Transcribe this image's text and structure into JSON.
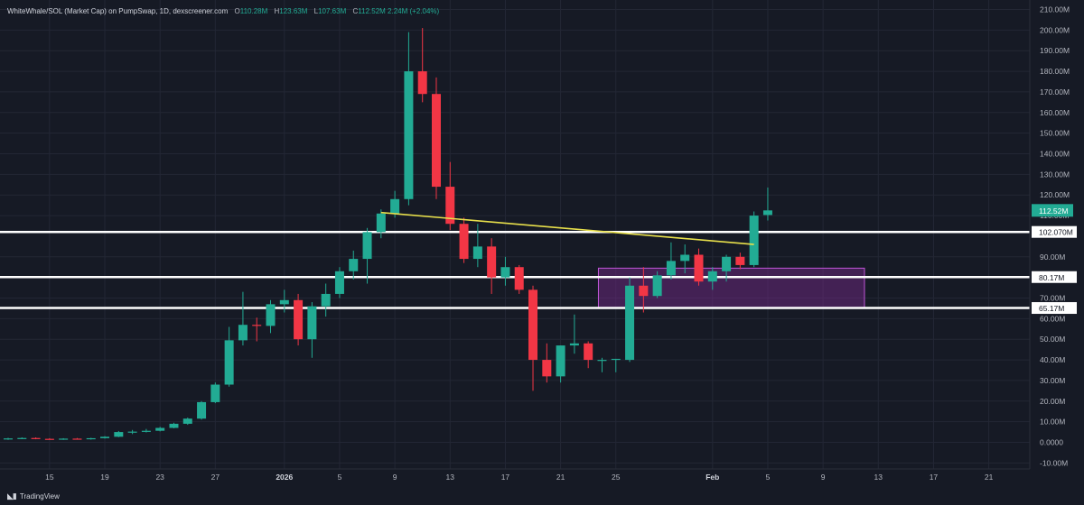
{
  "legend": {
    "symbol": "WhiteWhale/SOL (Market Cap) on PumpSwap, 1D, dexscreener.com",
    "o_label": "O",
    "o_value": "110.28M",
    "h_label": "H",
    "h_value": "123.63M",
    "l_label": "L",
    "l_value": "107.63M",
    "c_label": "C",
    "c_value": "112.52M",
    "change": "2.24M (+2.04%)"
  },
  "footer": {
    "brand": "TradingView",
    "logo_icon": "tradingview-logo-icon"
  },
  "colors": {
    "background": "#161a25",
    "grid": "#232735",
    "up": "#22ab94",
    "down": "#f23645",
    "level_line": "#ffffff",
    "trendline": "#e8e04b",
    "zone_fill": "#7b2a8f",
    "zone_stroke": "#c055d8"
  },
  "chart_data": {
    "type": "candlestick",
    "title": "",
    "y_unit": "M",
    "ylim": [
      -10,
      210
    ],
    "y_ticks": [
      {
        "value": 210,
        "label": "210.00M"
      },
      {
        "value": 200,
        "label": "200.00M"
      },
      {
        "value": 190,
        "label": "190.00M"
      },
      {
        "value": 180,
        "label": "180.00M"
      },
      {
        "value": 170,
        "label": "170.00M"
      },
      {
        "value": 160,
        "label": "160.00M"
      },
      {
        "value": 150,
        "label": "150.00M"
      },
      {
        "value": 140,
        "label": "140.00M"
      },
      {
        "value": 130,
        "label": "130.00M"
      },
      {
        "value": 120,
        "label": "120.00M"
      },
      {
        "value": 110,
        "label": "110.00M"
      },
      {
        "value": 90,
        "label": "90.00M"
      },
      {
        "value": 70,
        "label": "70.00M"
      },
      {
        "value": 60,
        "label": "60.00M"
      },
      {
        "value": 50,
        "label": "50.00M"
      },
      {
        "value": 40,
        "label": "40.00M"
      },
      {
        "value": 30,
        "label": "30.00M"
      },
      {
        "value": 20,
        "label": "20.00M"
      },
      {
        "value": 10,
        "label": "10.00M"
      },
      {
        "value": 0,
        "label": "0.0000"
      },
      {
        "value": -10,
        "label": "-10.00M"
      }
    ],
    "x_ticks": [
      {
        "label": "15",
        "date": "2025-12-15"
      },
      {
        "label": "19",
        "date": "2025-12-19"
      },
      {
        "label": "23",
        "date": "2025-12-23"
      },
      {
        "label": "27",
        "date": "2025-12-27"
      },
      {
        "label": "2026",
        "date": "2026-01-01",
        "bold": true
      },
      {
        "label": "5",
        "date": "2026-01-05"
      },
      {
        "label": "9",
        "date": "2026-01-09"
      },
      {
        "label": "13",
        "date": "2026-01-13"
      },
      {
        "label": "17",
        "date": "2026-01-17"
      },
      {
        "label": "21",
        "date": "2026-01-21"
      },
      {
        "label": "25",
        "date": "2026-01-25"
      },
      {
        "label": "Feb",
        "date": "2026-02-01",
        "bold": true
      },
      {
        "label": "5",
        "date": "2026-02-05"
      },
      {
        "label": "9",
        "date": "2026-02-09"
      },
      {
        "label": "13",
        "date": "2026-02-13"
      },
      {
        "label": "17",
        "date": "2026-02-17"
      },
      {
        "label": "21",
        "date": "2026-02-21"
      }
    ],
    "candles": [
      {
        "date": "2025-12-12",
        "o": 1.6,
        "h": 2.2,
        "l": 1.2,
        "c": 1.9
      },
      {
        "date": "2025-12-13",
        "o": 1.9,
        "h": 2.4,
        "l": 1.6,
        "c": 2.1
      },
      {
        "date": "2025-12-14",
        "o": 2.1,
        "h": 2.4,
        "l": 1.5,
        "c": 1.7
      },
      {
        "date": "2025-12-15",
        "o": 1.7,
        "h": 2.0,
        "l": 1.3,
        "c": 1.5
      },
      {
        "date": "2025-12-16",
        "o": 1.5,
        "h": 2.0,
        "l": 1.2,
        "c": 1.8
      },
      {
        "date": "2025-12-17",
        "o": 1.8,
        "h": 2.1,
        "l": 1.3,
        "c": 1.5
      },
      {
        "date": "2025-12-18",
        "o": 1.5,
        "h": 2.2,
        "l": 1.3,
        "c": 2.0
      },
      {
        "date": "2025-12-19",
        "o": 2.0,
        "h": 3.0,
        "l": 1.8,
        "c": 2.7
      },
      {
        "date": "2025-12-20",
        "o": 2.7,
        "h": 5.5,
        "l": 2.5,
        "c": 5.0
      },
      {
        "date": "2025-12-21",
        "o": 5.0,
        "h": 6.0,
        "l": 4.0,
        "c": 5.2
      },
      {
        "date": "2025-12-22",
        "o": 5.2,
        "h": 6.5,
        "l": 4.8,
        "c": 5.6
      },
      {
        "date": "2025-12-23",
        "o": 5.6,
        "h": 7.5,
        "l": 5.3,
        "c": 7.0
      },
      {
        "date": "2025-12-24",
        "o": 7.0,
        "h": 9.5,
        "l": 6.8,
        "c": 9.0
      },
      {
        "date": "2025-12-25",
        "o": 9.0,
        "h": 12.0,
        "l": 8.5,
        "c": 11.5
      },
      {
        "date": "2025-12-26",
        "o": 11.5,
        "h": 20.0,
        "l": 11.0,
        "c": 19.5
      },
      {
        "date": "2025-12-27",
        "o": 19.5,
        "h": 29.0,
        "l": 19.0,
        "c": 28.0
      },
      {
        "date": "2025-12-28",
        "o": 28.0,
        "h": 56.0,
        "l": 27.0,
        "c": 49.5
      },
      {
        "date": "2025-12-29",
        "o": 49.5,
        "h": 73.0,
        "l": 47.0,
        "c": 57.0
      },
      {
        "date": "2025-12-30",
        "o": 57.0,
        "h": 60.5,
        "l": 49.0,
        "c": 56.5
      },
      {
        "date": "2025-12-31",
        "o": 56.5,
        "h": 69.0,
        "l": 53.0,
        "c": 67.0
      },
      {
        "date": "2026-01-01",
        "o": 67.0,
        "h": 74.0,
        "l": 63.0,
        "c": 69.0
      },
      {
        "date": "2026-01-02",
        "o": 69.0,
        "h": 72.0,
        "l": 47.0,
        "c": 50.0
      },
      {
        "date": "2026-01-03",
        "o": 50.0,
        "h": 68.0,
        "l": 41.0,
        "c": 66.0
      },
      {
        "date": "2026-01-04",
        "o": 66.0,
        "h": 77.0,
        "l": 61.0,
        "c": 72.0
      },
      {
        "date": "2026-01-05",
        "o": 72.0,
        "h": 85.0,
        "l": 70.0,
        "c": 83.0
      },
      {
        "date": "2026-01-06",
        "o": 83.0,
        "h": 93.0,
        "l": 79.0,
        "c": 89.0
      },
      {
        "date": "2026-01-07",
        "o": 89.0,
        "h": 104.0,
        "l": 77.0,
        "c": 102.0
      },
      {
        "date": "2026-01-08",
        "o": 102.0,
        "h": 113.0,
        "l": 99.0,
        "c": 111.0
      },
      {
        "date": "2026-01-09",
        "o": 111.0,
        "h": 122.0,
        "l": 109.0,
        "c": 118.0
      },
      {
        "date": "2026-01-10",
        "o": 118.0,
        "h": 199.0,
        "l": 115.0,
        "c": 180.0
      },
      {
        "date": "2026-01-11",
        "o": 180.0,
        "h": 201.0,
        "l": 165.0,
        "c": 169.0
      },
      {
        "date": "2026-01-12",
        "o": 169.0,
        "h": 177.0,
        "l": 118.0,
        "c": 124.0
      },
      {
        "date": "2026-01-13",
        "o": 124.0,
        "h": 136.0,
        "l": 103.0,
        "c": 106.0
      },
      {
        "date": "2026-01-14",
        "o": 106.0,
        "h": 109.0,
        "l": 87.0,
        "c": 89.0
      },
      {
        "date": "2026-01-15",
        "o": 89.0,
        "h": 106.0,
        "l": 85.0,
        "c": 95.0
      },
      {
        "date": "2026-01-16",
        "o": 95.0,
        "h": 99.0,
        "l": 72.0,
        "c": 80.0
      },
      {
        "date": "2026-01-17",
        "o": 80.0,
        "h": 90.0,
        "l": 76.0,
        "c": 85.0
      },
      {
        "date": "2026-01-18",
        "o": 85.0,
        "h": 86.0,
        "l": 72.0,
        "c": 74.0
      },
      {
        "date": "2026-01-19",
        "o": 74.0,
        "h": 76.0,
        "l": 25.0,
        "c": 40.0
      },
      {
        "date": "2026-01-20",
        "o": 40.0,
        "h": 48.0,
        "l": 29.0,
        "c": 32.0
      },
      {
        "date": "2026-01-21",
        "o": 32.0,
        "h": 47.0,
        "l": 29.0,
        "c": 47.0
      },
      {
        "date": "2026-01-22",
        "o": 47.0,
        "h": 62.0,
        "l": 43.0,
        "c": 48.0
      },
      {
        "date": "2026-01-23",
        "o": 48.0,
        "h": 49.0,
        "l": 36.0,
        "c": 40.0
      },
      {
        "date": "2026-01-24",
        "o": 40.0,
        "h": 41.0,
        "l": 34.0,
        "c": 40.0
      },
      {
        "date": "2026-01-25",
        "o": 40.0,
        "h": 40.5,
        "l": 34.0,
        "c": 40.5
      },
      {
        "date": "2026-01-26",
        "o": 40.0,
        "h": 80.0,
        "l": 39.0,
        "c": 76.0
      },
      {
        "date": "2026-01-27",
        "o": 76.0,
        "h": 85.0,
        "l": 63.0,
        "c": 71.0
      },
      {
        "date": "2026-01-28",
        "o": 71.0,
        "h": 83.0,
        "l": 70.0,
        "c": 81.0
      },
      {
        "date": "2026-01-29",
        "o": 81.0,
        "h": 97.0,
        "l": 79.0,
        "c": 88.0
      },
      {
        "date": "2026-01-30",
        "o": 88.0,
        "h": 96.0,
        "l": 82.0,
        "c": 91.0
      },
      {
        "date": "2026-01-31",
        "o": 91.0,
        "h": 94.0,
        "l": 76.0,
        "c": 78.0
      },
      {
        "date": "2026-02-01",
        "o": 78.0,
        "h": 85.0,
        "l": 74.0,
        "c": 83.0
      },
      {
        "date": "2026-02-02",
        "o": 83.0,
        "h": 91.0,
        "l": 78.0,
        "c": 90.0
      },
      {
        "date": "2026-02-03",
        "o": 90.0,
        "h": 92.0,
        "l": 84.0,
        "c": 86.0
      },
      {
        "date": "2026-02-04",
        "o": 86.0,
        "h": 112.0,
        "l": 85.0,
        "c": 110.0
      },
      {
        "date": "2026-02-05",
        "o": 110.28,
        "h": 123.63,
        "l": 107.63,
        "c": 112.52
      }
    ],
    "horizontal_levels": [
      {
        "value": 102.07,
        "label": "102.070M"
      },
      {
        "value": 80.17,
        "label": "80.17M"
      },
      {
        "value": 65.17,
        "label": "65.17M"
      }
    ],
    "zone": {
      "start": "2026-01-24",
      "end": "2026-02-12",
      "low": 65.0,
      "high": 84.5
    },
    "trendline": {
      "start_date": "2026-01-08",
      "start_value": 111.5,
      "end_date": "2026-02-04",
      "end_value": 96.0
    },
    "last_price_label": "112.52M",
    "last_price": 112.52
  }
}
